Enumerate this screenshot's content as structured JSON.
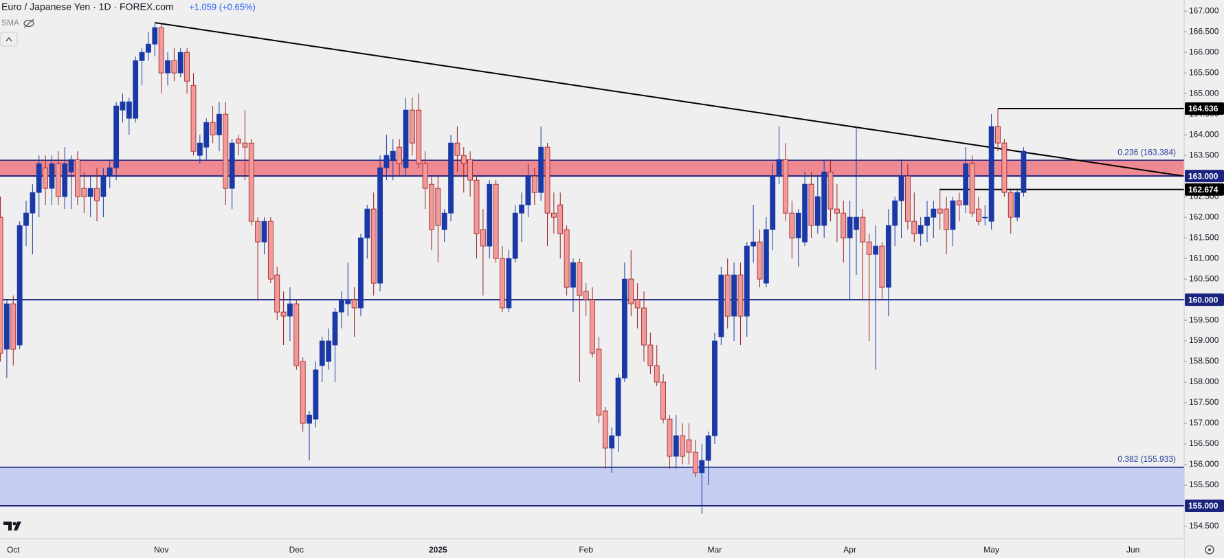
{
  "chart_data": {
    "type": "candlestick",
    "title": "Euro / Japanese Yen · 1D · FOREX.com",
    "change": "+1.059 (+0.65%)",
    "indicator": "SMA",
    "categories": [
      null,
      null,
      "Oct",
      null,
      null,
      null,
      null,
      null,
      null,
      null,
      null,
      null,
      null,
      null,
      null,
      null,
      null,
      null,
      null,
      null,
      null,
      null,
      null,
      null,
      null,
      "Nov",
      null,
      null,
      null,
      null,
      null,
      null,
      null,
      null,
      null,
      null,
      null,
      null,
      null,
      null,
      null,
      null,
      null,
      null,
      null,
      null,
      "Dec",
      null,
      null,
      null,
      null,
      null,
      null,
      null,
      null,
      null,
      null,
      null,
      null,
      null,
      null,
      null,
      null,
      null,
      null,
      null,
      null,
      null,
      "2025",
      null,
      null,
      null,
      null,
      null,
      null,
      null,
      null,
      null,
      null,
      null,
      null,
      null,
      null,
      null,
      null,
      null,
      null,
      null,
      null,
      null,
      null,
      "Feb",
      null,
      null,
      null,
      null,
      null,
      null,
      null,
      null,
      null,
      null,
      null,
      null,
      null,
      null,
      null,
      null,
      null,
      null,
      null,
      "Mar",
      null,
      null,
      null,
      null,
      null,
      null,
      null,
      null,
      null,
      null,
      null,
      null,
      null,
      null,
      null,
      null,
      null,
      null,
      null,
      null,
      "Apr",
      null,
      null,
      null,
      null,
      null,
      null,
      null,
      null,
      null,
      null,
      null,
      null,
      null,
      null,
      null,
      null,
      null,
      null,
      null,
      null,
      null,
      "May",
      null,
      null,
      null,
      null,
      null,
      null,
      null,
      null,
      null,
      null,
      null,
      null,
      null,
      null,
      null,
      null,
      null,
      null,
      null,
      null,
      null,
      "Jun",
      null,
      null,
      null,
      null,
      null,
      null,
      null
    ],
    "open": [
      162.0,
      158.8,
      159.9,
      158.9,
      161.8,
      162.1,
      162.6,
      163.2,
      162.7,
      163.3,
      162.5,
      163.1,
      163.4,
      162.7,
      162.5,
      162.7,
      162.5,
      163.0,
      163.2,
      164.6,
      164.4,
      164.4,
      165.8,
      166.0,
      166.2,
      166.6,
      165.5,
      165.8,
      165.5,
      166.0,
      165.2,
      163.5,
      163.7,
      164.3,
      164.0,
      164.5,
      162.7,
      163.9,
      163.8,
      163.8,
      161.9,
      161.4,
      161.9,
      160.6,
      159.7,
      159.6,
      159.9,
      158.5,
      157.0,
      157.1,
      158.4,
      158.5,
      158.9,
      159.7,
      159.9,
      160.0,
      159.8,
      161.5,
      162.2,
      160.4,
      163.2,
      163.4,
      163.7,
      163.2,
      164.6,
      164.6,
      163.3,
      162.8,
      162.7,
      161.7,
      162.1,
      163.8,
      163.5,
      163.4,
      162.9,
      161.7,
      161.3,
      162.8,
      161.0,
      159.8,
      161.0,
      162.1,
      162.3,
      163.0,
      162.6,
      163.7,
      162.1,
      162.3,
      161.7,
      160.3,
      160.9,
      160.2,
      160.0,
      158.8,
      157.3,
      156.4,
      156.7,
      158.1,
      160.5,
      160.0,
      159.8,
      158.9,
      158.4,
      158.0,
      157.1,
      156.2,
      156.7,
      156.6,
      156.3,
      155.8,
      156.1,
      156.7,
      159.1,
      160.6,
      159.6,
      160.6,
      159.6,
      161.3,
      161.4,
      160.4,
      161.7,
      163.0,
      163.4,
      162.1,
      161.5,
      161.4,
      162.8,
      161.8,
      161.8,
      163.1,
      162.2,
      162.1,
      161.5,
      161.7,
      162.0,
      161.4,
      161.1,
      161.3,
      160.3,
      161.8,
      162.4,
      163.0,
      161.9,
      161.6,
      161.8,
      162.0,
      162.2,
      162.2,
      161.7,
      162.4,
      162.3,
      163.3,
      162.2,
      162.0,
      161.9,
      164.2,
      163.8,
      162.6,
      162.0,
      162.6,
      null,
      null,
      null,
      null,
      null,
      null,
      null,
      null,
      null,
      null,
      null,
      null,
      null,
      null,
      null,
      null,
      null,
      null,
      null,
      null,
      null,
      null,
      null,
      null
    ],
    "high": [
      162.5,
      160.0,
      160.1,
      161.9,
      162.4,
      162.8,
      163.5,
      163.5,
      163.5,
      163.6,
      163.7,
      163.5,
      163.6,
      163.1,
      163.0,
      163.2,
      163.2,
      163.4,
      164.8,
      165.0,
      164.9,
      165.9,
      166.1,
      166.5,
      166.7,
      166.7,
      166.0,
      166.1,
      166.1,
      166.1,
      165.5,
      164.0,
      164.4,
      164.7,
      164.8,
      164.8,
      163.9,
      164.0,
      164.6,
      163.9,
      162.0,
      162.0,
      162.0,
      160.8,
      160.2,
      160.3,
      160.0,
      158.6,
      157.3,
      158.5,
      159.1,
      159.3,
      159.8,
      160.2,
      160.9,
      160.3,
      161.6,
      162.3,
      162.6,
      163.5,
      164.0,
      163.9,
      163.9,
      164.9,
      164.9,
      165.0,
      163.6,
      163.0,
      163.0,
      162.2,
      164.0,
      164.2,
      163.7,
      163.6,
      163.0,
      162.2,
      162.9,
      162.9,
      161.3,
      161.2,
      162.3,
      162.6,
      163.3,
      163.2,
      164.2,
      163.8,
      162.6,
      162.6,
      161.8,
      161.0,
      161.0,
      160.4,
      160.3,
      159.1,
      157.4,
      156.9,
      158.2,
      160.9,
      161.2,
      160.4,
      160.2,
      159.2,
      158.9,
      158.2,
      157.2,
      157.2,
      157.0,
      157.0,
      156.6,
      156.5,
      156.8,
      159.2,
      160.8,
      161.0,
      160.9,
      160.9,
      161.4,
      162.3,
      161.7,
      162.0,
      163.3,
      164.2,
      163.8,
      162.4,
      162.2,
      163.1,
      163.1,
      163.0,
      163.4,
      163.4,
      162.8,
      162.4,
      162.4,
      164.2,
      162.2,
      161.6,
      161.8,
      161.4,
      162.2,
      162.5,
      163.4,
      163.3,
      162.6,
      162.0,
      162.4,
      162.4,
      162.7,
      162.5,
      162.5,
      162.6,
      163.7,
      163.5,
      162.5,
      162.3,
      164.5,
      164.636,
      163.9,
      162.7,
      162.7,
      163.7,
      null,
      null,
      null,
      null,
      null,
      null,
      null,
      null,
      null,
      null,
      null,
      null,
      null,
      null,
      null,
      null,
      null,
      null,
      null,
      null,
      null,
      null,
      null,
      null
    ],
    "low": [
      158.5,
      158.1,
      158.4,
      158.8,
      161.3,
      161.1,
      162.0,
      162.3,
      162.3,
      162.3,
      162.2,
      162.2,
      162.3,
      162.1,
      162.0,
      161.9,
      162.0,
      162.7,
      162.9,
      164.3,
      164.0,
      164.3,
      165.2,
      165.8,
      165.9,
      165.0,
      165.2,
      165.3,
      165.4,
      165.0,
      163.5,
      163.3,
      163.4,
      163.8,
      163.6,
      162.3,
      162.2,
      163.5,
      162.9,
      161.8,
      160.0,
      161.1,
      160.4,
      159.5,
      158.9,
      159.0,
      158.3,
      156.8,
      156.1,
      156.9,
      158.0,
      158.3,
      158.0,
      159.3,
      159.6,
      159.1,
      159.6,
      161.0,
      160.1,
      160.2,
      162.9,
      162.9,
      163.0,
      163.0,
      163.5,
      163.2,
      162.2,
      161.2,
      160.9,
      161.4,
      161.9,
      163.1,
      162.6,
      162.5,
      161.0,
      160.1,
      161.0,
      160.9,
      159.7,
      159.7,
      160.9,
      161.4,
      162.0,
      162.3,
      162.4,
      161.3,
      161.6,
      161.0,
      160.1,
      159.7,
      158.0,
      159.6,
      158.6,
      157.0,
      155.9,
      155.8,
      156.3,
      158.0,
      159.6,
      159.3,
      158.5,
      158.2,
      157.9,
      157.0,
      155.9,
      155.9,
      156.0,
      156.0,
      155.7,
      154.8,
      155.5,
      156.5,
      158.9,
      159.3,
      159.0,
      158.9,
      159.1,
      160.9,
      160.3,
      160.3,
      161.2,
      162.8,
      161.9,
      161.0,
      160.8,
      161.3,
      161.5,
      161.6,
      161.5,
      161.9,
      161.4,
      160.9,
      160.0,
      160.6,
      160.0,
      159.0,
      158.3,
      160.0,
      159.6,
      161.3,
      161.5,
      161.7,
      161.4,
      161.3,
      161.4,
      161.5,
      161.7,
      161.1,
      161.3,
      161.9,
      162.1,
      162.0,
      161.8,
      161.8,
      161.7,
      163.6,
      162.5,
      161.6,
      161.9,
      162.5,
      null,
      null,
      null,
      null,
      null,
      null,
      null,
      null,
      null,
      null,
      null,
      null,
      null,
      null,
      null,
      null,
      null,
      null,
      null,
      null,
      null,
      null,
      null,
      null
    ],
    "close": [
      158.7,
      159.9,
      158.8,
      161.8,
      162.1,
      162.6,
      163.3,
      162.7,
      163.3,
      162.5,
      163.3,
      163.4,
      162.5,
      162.5,
      162.7,
      162.4,
      163.0,
      163.2,
      164.7,
      164.8,
      164.8,
      165.8,
      166.0,
      166.2,
      166.6,
      165.5,
      165.8,
      165.5,
      166.0,
      165.3,
      163.6,
      163.8,
      164.3,
      164.0,
      164.5,
      162.7,
      163.8,
      163.8,
      163.7,
      161.9,
      161.4,
      161.9,
      160.5,
      159.7,
      159.6,
      159.9,
      158.4,
      157.0,
      157.2,
      158.3,
      159.0,
      159.0,
      159.7,
      160.0,
      160.0,
      159.8,
      161.5,
      162.2,
      160.4,
      163.2,
      163.5,
      163.6,
      163.3,
      164.6,
      163.8,
      163.3,
      162.7,
      161.7,
      161.8,
      162.1,
      163.8,
      163.5,
      163.3,
      162.9,
      161.6,
      161.3,
      162.8,
      161.0,
      159.8,
      161.0,
      162.1,
      162.3,
      163.0,
      162.6,
      163.7,
      162.1,
      162.0,
      161.6,
      160.3,
      160.9,
      160.1,
      160.0,
      158.7,
      157.2,
      156.4,
      156.7,
      158.1,
      160.5,
      159.9,
      159.8,
      158.9,
      158.4,
      158.0,
      157.1,
      156.2,
      156.7,
      156.2,
      156.3,
      155.8,
      156.1,
      156.7,
      159.0,
      160.6,
      159.6,
      160.6,
      159.6,
      161.3,
      161.4,
      160.5,
      161.7,
      163.0,
      163.4,
      162.1,
      161.5,
      162.1,
      162.8,
      161.8,
      162.5,
      163.1,
      162.2,
      162.1,
      161.5,
      162.0,
      162.0,
      161.4,
      161.1,
      161.3,
      160.3,
      161.8,
      162.4,
      163.0,
      161.9,
      161.6,
      161.8,
      162.0,
      162.2,
      162.1,
      161.7,
      162.4,
      162.3,
      163.3,
      162.1,
      161.9,
      162.0,
      164.2,
      163.8,
      162.6,
      162.0,
      162.6,
      163.6,
      null,
      null,
      null,
      null,
      null,
      null,
      null,
      null,
      null,
      null,
      null,
      null,
      null,
      null,
      null,
      null,
      null,
      null,
      null,
      null,
      null,
      null,
      null,
      null
    ],
    "up_color": "#1a38a6",
    "down_color": "#f19a9a",
    "down_edge": "#9b1c1c",
    "ylim": [
      154.2,
      167.27
    ],
    "yticks": [
      {
        "value": 154.5,
        "label": "154.500"
      },
      {
        "value": 155,
        "label": "155.000"
      },
      {
        "value": 155.5,
        "label": "155.500"
      },
      {
        "value": 156,
        "label": "156.000"
      },
      {
        "value": 156.5,
        "label": "156.500"
      },
      {
        "value": 157,
        "label": "157.000"
      },
      {
        "value": 157.5,
        "label": "157.500"
      },
      {
        "value": 158,
        "label": "158.000"
      },
      {
        "value": 158.5,
        "label": "158.500"
      },
      {
        "value": 159,
        "label": "159.000"
      },
      {
        "value": 159.5,
        "label": "159.500"
      },
      {
        "value": 160,
        "label": "160.000"
      },
      {
        "value": 160.5,
        "label": "160.500"
      },
      {
        "value": 161,
        "label": "161.000"
      },
      {
        "value": 161.5,
        "label": "161.500"
      },
      {
        "value": 162,
        "label": "162.000"
      },
      {
        "value": 162.5,
        "label": "162.500"
      },
      {
        "value": 163,
        "label": "163.000"
      },
      {
        "value": 163.5,
        "label": "163.500"
      },
      {
        "value": 164,
        "label": "164.000"
      },
      {
        "value": 164.5,
        "label": "164.500"
      },
      {
        "value": 165,
        "label": "165.000"
      },
      {
        "value": 165.5,
        "label": "165.500"
      },
      {
        "value": 166,
        "label": "166.000"
      },
      {
        "value": 166.5,
        "label": "166.500"
      },
      {
        "value": 167,
        "label": "167.000"
      }
    ],
    "zones": [
      {
        "from": 163.0,
        "to": 163.384,
        "color": "#f08a92"
      },
      {
        "from": 155.0,
        "to": 155.933,
        "color": "#c5cef0"
      }
    ],
    "fib_levels": [
      {
        "value": 163.384,
        "label": "0.236 (163.384)"
      },
      {
        "value": 155.933,
        "label": "0.382 (155.933)"
      }
    ],
    "levels": [
      {
        "value": 164.636,
        "label": "164.636",
        "color": "#000000",
        "from_category": 155
      },
      {
        "value": 163.0,
        "label": "163.000",
        "color": "#1a237e"
      },
      {
        "value": 162.674,
        "label": "162.674",
        "color": "#000000",
        "from_category": 146
      },
      {
        "value": 160.0,
        "label": "160.000",
        "color": "#1a237e"
      },
      {
        "value": 155.0,
        "label": "155.000",
        "color": "#1a237e"
      }
    ],
    "trendline": {
      "x": [
        24,
        183.8
      ],
      "y": [
        166.72,
        163.0
      ],
      "color": "#000000"
    }
  }
}
